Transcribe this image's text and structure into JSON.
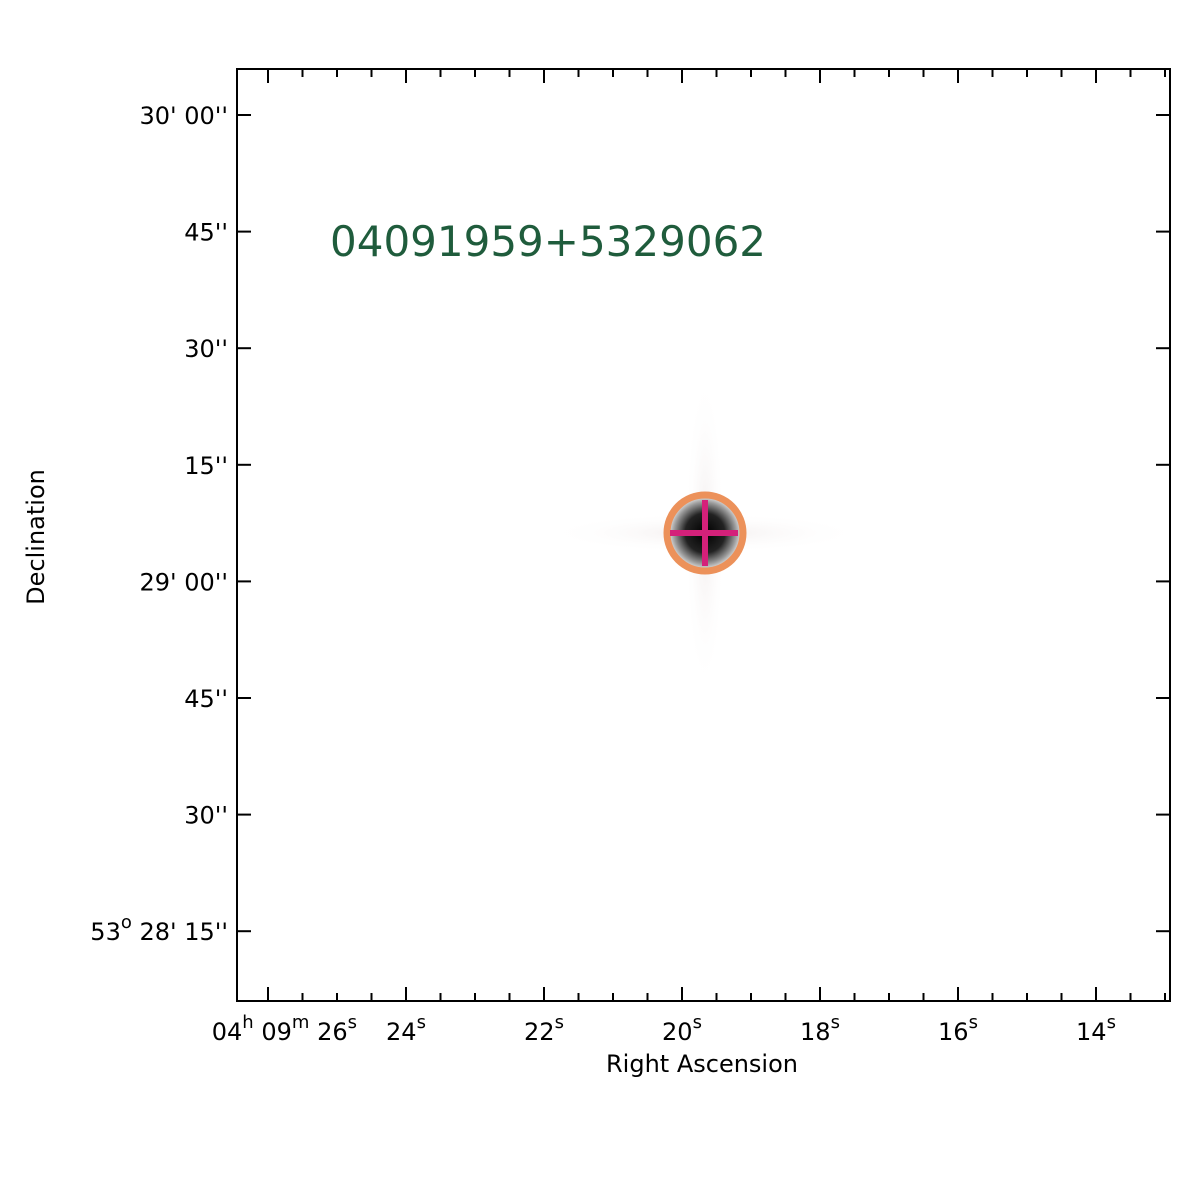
{
  "source_label": "04091959+5329062",
  "x_axis_label": "Right Ascension",
  "y_axis_label": "Declination",
  "x_ticks": [
    [
      [
        "04",
        "h"
      ],
      [
        "09",
        "m"
      ],
      [
        "26",
        "s"
      ]
    ],
    [
      [
        "24",
        "s"
      ]
    ],
    [
      [
        "22",
        "s"
      ]
    ],
    [
      [
        "20",
        "s"
      ]
    ],
    [
      [
        "18",
        "s"
      ]
    ],
    [
      [
        "16",
        "s"
      ]
    ],
    [
      [
        "14",
        "s"
      ]
    ]
  ],
  "y_ticks": [
    [
      [
        "30' 00''"
      ]
    ],
    [
      [
        "45''"
      ]
    ],
    [
      [
        "30''"
      ]
    ],
    [
      [
        "15''"
      ]
    ],
    [
      [
        "29' 00''"
      ]
    ],
    [
      [
        "45''"
      ]
    ],
    [
      [
        "30''"
      ]
    ],
    [
      [
        "53",
        "o"
      ],
      [
        "28' 15''"
      ]
    ]
  ]
}
